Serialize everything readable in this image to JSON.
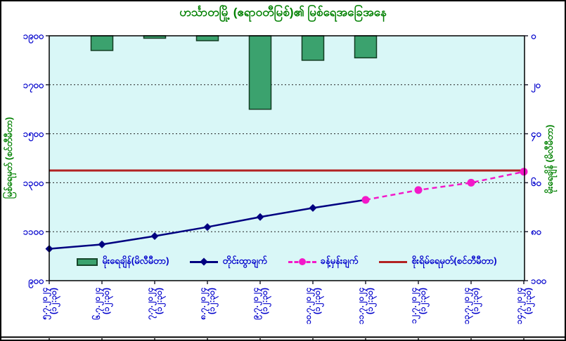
{
  "chart_data": {
    "type": "combo",
    "subtypes": [
      "bar",
      "line",
      "line",
      "hline"
    ],
    "title": "ဟင်္သာတမြို့ (ဧရာဝတီမြစ်)၏ မြစ်ရေအခြေအနေ",
    "title_translation": "Hinthada Town (Ayeyarwady River) river water level situation",
    "plot_bg": "#D9F7F7",
    "grid": "horizontal dotted",
    "legend_position": "bottom-inside",
    "categories": [
      "၅.၇.၂၀၂၄",
      "၆.၇.၂၀၂၄",
      "၇.၇.၂၀၂၄",
      "၈.၇.၂၀၂၄",
      "၉.၇.၂၀၂၄",
      "၁၀.၇.၂၀၂၄",
      "၁၁.၇.၂၀၂၄",
      "၁၂.၇.၂၀၂၄",
      "၁၃.၇.၂၀၂၄",
      "၁၄.၇.၂၀၂၄"
    ],
    "categories_latin": [
      "5.7.2024",
      "6.7.2024",
      "7.7.2024",
      "8.7.2024",
      "9.7.2024",
      "10.7.2024",
      "11.7.2024",
      "12.7.2024",
      "13.7.2024",
      "14.7.2024"
    ],
    "time_label": "(၁၂:၃၀)",
    "time_label_latin": "(12:30)",
    "left_axis": {
      "title": "မြစ်ရေမှတ် (စင်တီမီတာ)",
      "title_translation": "Water level (centimeter)",
      "min": 900,
      "max": 1900,
      "tick_values": [
        1900,
        1700,
        1500,
        1300,
        1100,
        900
      ],
      "ticks": [
        "၁၉၀၀",
        "၁၇၀၀",
        "၁၅၀၀",
        "၁၃၀၀",
        "၁၁၀၀",
        "၉၀၀"
      ],
      "tick_color": "#0000CC",
      "title_color": "#008000"
    },
    "right_axis": {
      "title": "မိုးရေချိန် (မိလီမီတာ)",
      "title_translation": "Rainfall (millimeter)",
      "min": 0,
      "max": 100,
      "reversed": true,
      "tick_values": [
        0,
        20,
        40,
        60,
        80,
        100
      ],
      "ticks": [
        "၀",
        "၂၀",
        "၄၀",
        "၆၀",
        "၈၀",
        "၁၀၀"
      ],
      "tick_color": "#0000CC",
      "title_color": "#008000"
    },
    "series": [
      {
        "name": "မိုးရေချိန်(မိလီမီတာ)",
        "name_translation": "Rainfall (mm)",
        "type": "bar",
        "axis": "right",
        "color": "#3BA26E",
        "values": [
          0,
          6,
          1,
          2,
          30,
          10,
          9,
          0,
          0,
          0
        ]
      },
      {
        "name": "တိုင်းထွာချက်",
        "name_translation": "Observed",
        "type": "line",
        "style": "solid",
        "marker": "diamond",
        "axis": "left",
        "color": "#000080",
        "values": [
          1030,
          1048,
          1082,
          1119,
          1160,
          1197,
          1230,
          null,
          null,
          null
        ]
      },
      {
        "name": "ခန့်မှန်းချက်",
        "name_translation": "Forecast",
        "type": "line",
        "style": "dashed",
        "marker": "circle",
        "axis": "left",
        "color": "#F319C9",
        "values": [
          null,
          null,
          null,
          null,
          null,
          null,
          1230,
          1270,
          1300,
          1345
        ]
      },
      {
        "name": "စိုးရိမ်ရေမှတ်(စင်တီမီတာ)",
        "name_translation": "Danger level (cm)",
        "type": "hline",
        "axis": "left",
        "color": "#B22222",
        "value": 1350
      }
    ]
  }
}
